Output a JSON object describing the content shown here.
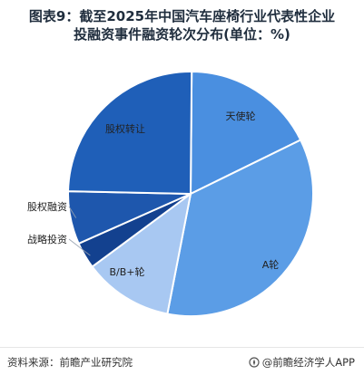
{
  "title_line1": "图表9：截至2025年中国汽车座椅行业代表性企业",
  "title_line2": "投融资事件融资轮次分布(单位：%)",
  "source": "资料来源：前瞻产业研究院",
  "brand": "@前瞻经济学人APP",
  "brand_icon": "compass-icon",
  "chart_data": {
    "type": "pie",
    "title": "图表9：截至2025年中国汽车座椅行业代表性企业投融资事件融资轮次分布(单位：%)",
    "slices": [
      {
        "label": "天使轮",
        "value": 17.6,
        "color": "#4a8fe0"
      },
      {
        "label": "A轮",
        "value": 35.3,
        "color": "#5b9de6"
      },
      {
        "label": "B/B+轮",
        "value": 11.8,
        "color": "#a8c8f2"
      },
      {
        "label": "战略投资",
        "value": 3.5,
        "color": "#13418f"
      },
      {
        "label": "股权融资",
        "value": 7.0,
        "color": "#1e57ad"
      },
      {
        "label": "股权转让",
        "value": 24.8,
        "color": "#1f5fb8"
      }
    ]
  }
}
